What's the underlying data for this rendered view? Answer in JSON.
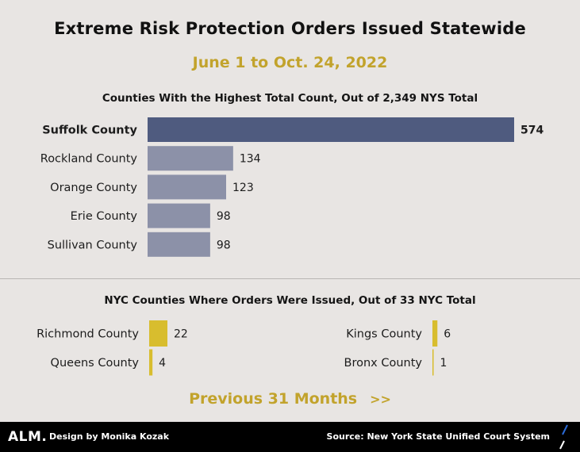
{
  "header": {
    "title": "Extreme Risk Protection Orders Issued Statewide",
    "subtitle": "June 1 to Oct. 24, 2022"
  },
  "cta": {
    "label": "Previous 31 Months",
    "arrows": ">>"
  },
  "footer": {
    "logo": "ALM.",
    "credit": "Design by Monika Kozak",
    "source": "Source: New York State Unified Court System"
  },
  "colors": {
    "highlight_bar": "#4f5b7f",
    "bar": "#8c91a8",
    "nyc_bar": "#d8bd2e",
    "accent_text": "#c2a32c"
  },
  "chart_data": [
    {
      "type": "bar",
      "orientation": "horizontal",
      "title": "Counties With the Highest Total Count, Out of 2,349 NYS Total",
      "categories": [
        "Suffolk County",
        "Rockland County",
        "Orange County",
        "Erie County",
        "Sullivan County"
      ],
      "values": [
        574,
        134,
        123,
        98,
        98
      ],
      "highlight": "Suffolk County",
      "xlim": [
        0,
        574
      ],
      "grid": false
    },
    {
      "type": "bar",
      "orientation": "horizontal",
      "title": "NYC Counties Where Orders Were Issued, Out of 33 NYC Total",
      "categories": [
        "Richmond County",
        "Queens County",
        "Kings County",
        "Bronx County"
      ],
      "values": [
        22,
        4,
        6,
        1
      ],
      "xlim": [
        0,
        22
      ],
      "grid": false
    }
  ]
}
